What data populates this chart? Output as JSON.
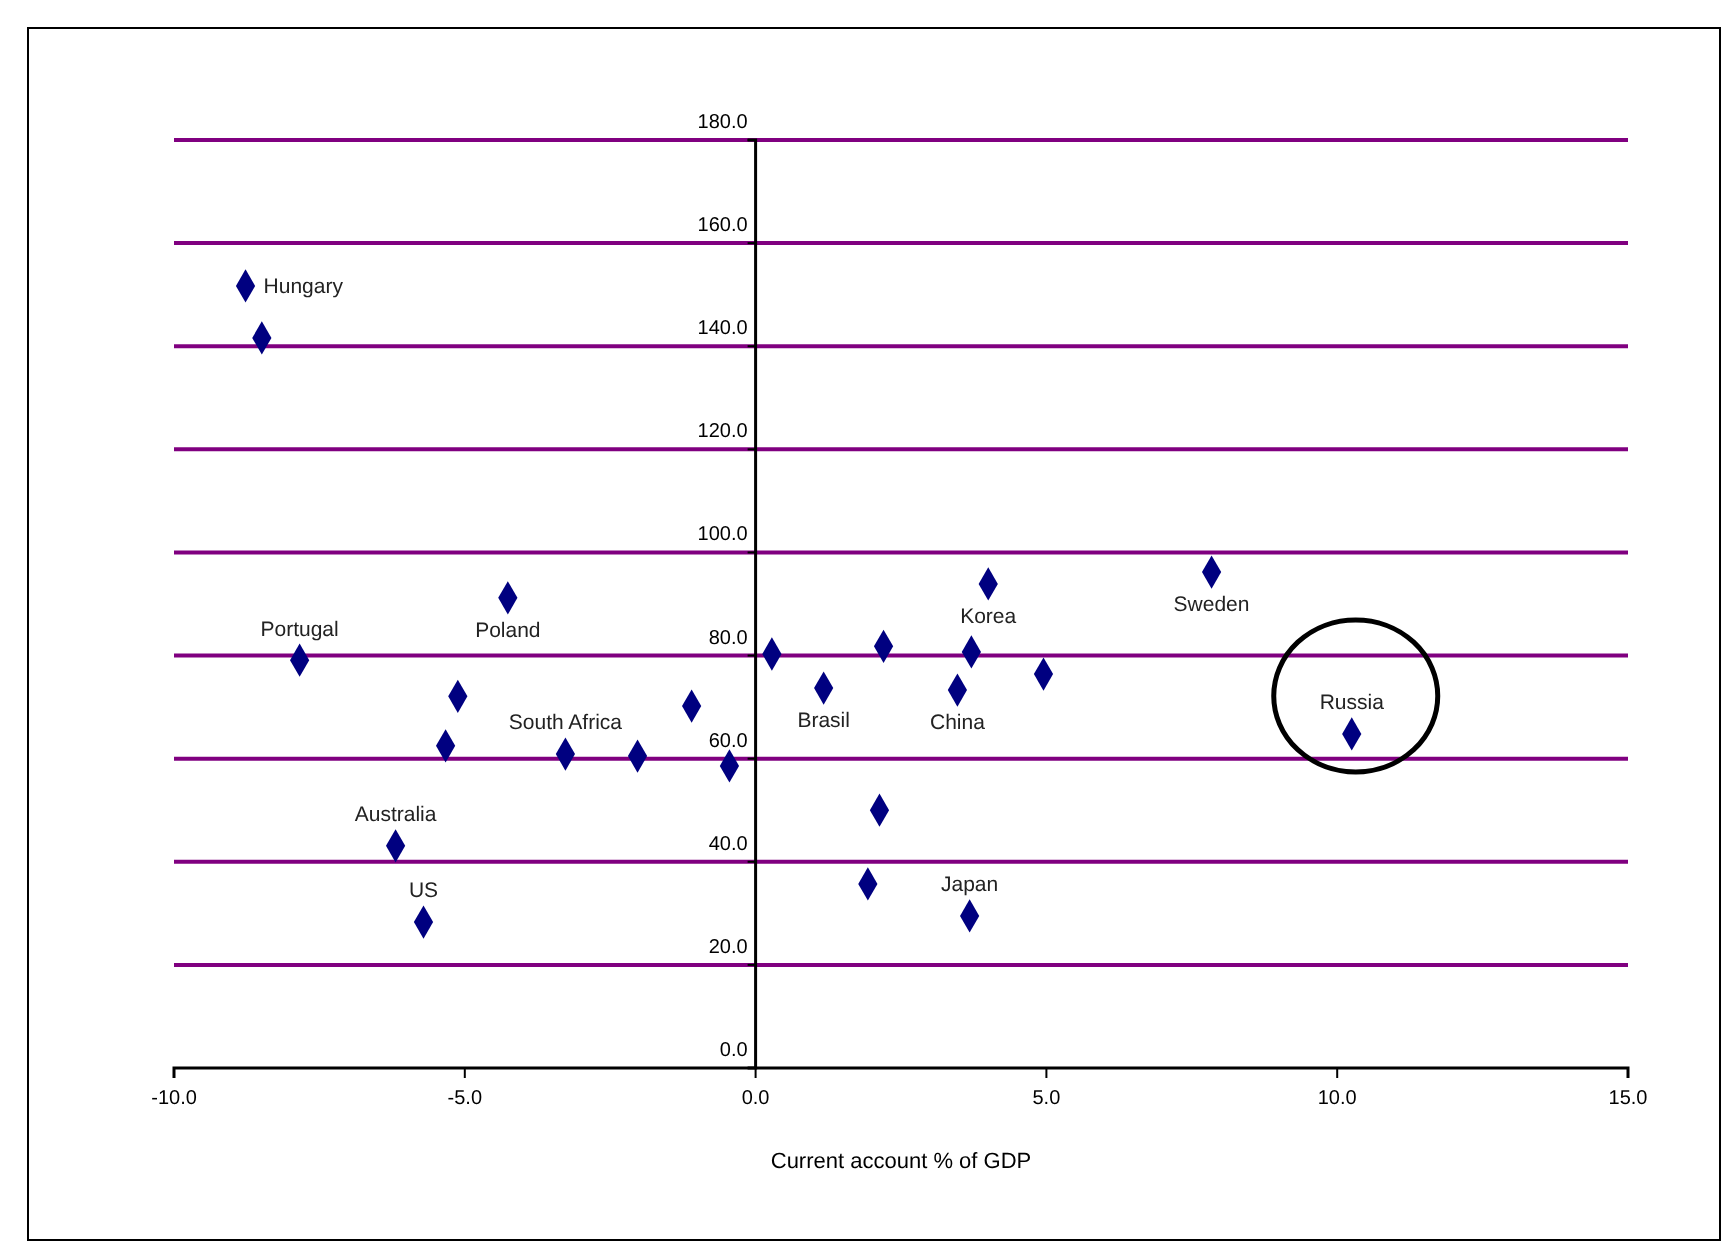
{
  "chart_data": {
    "type": "scatter",
    "xlabel": "Current account % of GDP",
    "x": [
      -8.77,
      -8.49,
      -7.84,
      -5.12,
      -5.33,
      -4.26,
      -6.19,
      -5.71,
      -3.27,
      -2.03,
      -1.1,
      -0.45,
      0.28,
      1.17,
      2.2,
      2.13,
      1.93,
      3.71,
      3.47,
      3.68,
      4.0,
      4.95,
      7.84,
      10.25
    ],
    "values": [
      151.7,
      141.6,
      79.1,
      72.1,
      62.5,
      91.2,
      43.1,
      28.3,
      60.9,
      60.5,
      70.2,
      58.6,
      80.3,
      73.7,
      81.8,
      50.0,
      35.7,
      80.7,
      73.3,
      29.5,
      93.9,
      76.4,
      96.2,
      64.8
    ],
    "color": "#000080",
    "marker": "diamond",
    "xlim": [
      -10,
      15
    ],
    "xticks": [
      {
        "value": -10,
        "label": "-10.0"
      },
      {
        "value": -5,
        "label": "-5.0"
      },
      {
        "value": 0,
        "label": "0.0"
      },
      {
        "value": 5,
        "label": "5.0"
      },
      {
        "value": 10,
        "label": "10.0"
      },
      {
        "value": 15,
        "label": "15.0"
      }
    ],
    "ylim": [
      0,
      180
    ],
    "yticks": [
      {
        "value": 0,
        "label": "0.0"
      },
      {
        "value": 20,
        "label": "20.0"
      },
      {
        "value": 40,
        "label": "40.0"
      },
      {
        "value": 60,
        "label": "60.0"
      },
      {
        "value": 80,
        "label": "80.0"
      },
      {
        "value": 100,
        "label": "100.0"
      },
      {
        "value": 120,
        "label": "120.0"
      },
      {
        "value": 140,
        "label": "140.0"
      },
      {
        "value": 160,
        "label": "160.0"
      },
      {
        "value": 180,
        "label": "180.0"
      }
    ],
    "grid": "y",
    "annotations": [
      {
        "text": "Hungary",
        "x": -8.77,
        "y": 151.7
      },
      {
        "text": "Poland",
        "x": -4.26,
        "y": 91.2
      },
      {
        "text": "Portugal",
        "x": -7.84,
        "y": 79.1
      },
      {
        "text": "South Africa",
        "x": -3.27,
        "y": 60.9
      },
      {
        "text": "Australia",
        "x": -6.19,
        "y": 43.1
      },
      {
        "text": "US",
        "x": -5.71,
        "y": 28.3
      },
      {
        "text": "Brasil",
        "x": 1.17,
        "y": 73.7
      },
      {
        "text": "China",
        "x": 3.47,
        "y": 73.3
      },
      {
        "text": "Korea",
        "x": 4.0,
        "y": 93.9
      },
      {
        "text": "Sweden",
        "x": 7.84,
        "y": 96.2
      },
      {
        "text": "Russia",
        "x": 10.25,
        "y": 64.8
      },
      {
        "text": "Japan",
        "x": 3.68,
        "y": 29.5
      }
    ]
  }
}
